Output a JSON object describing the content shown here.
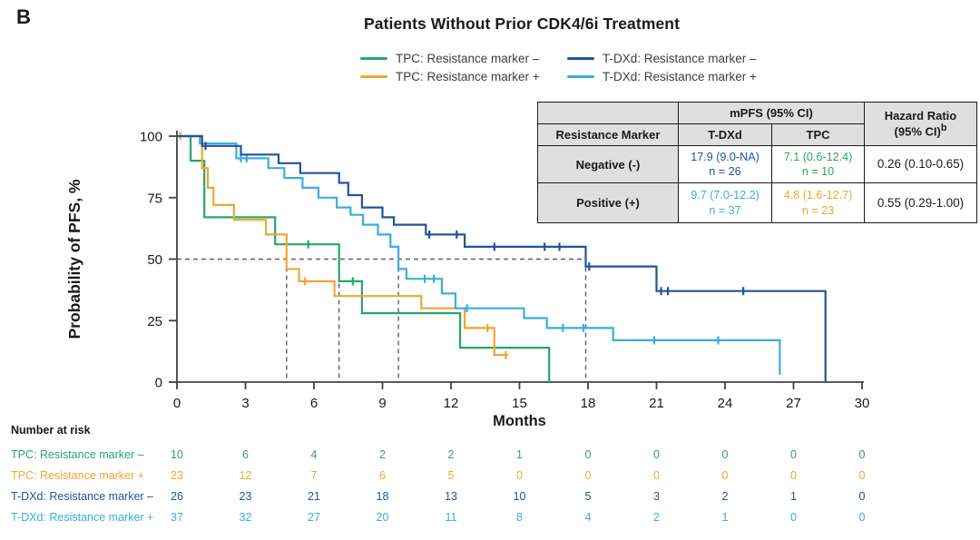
{
  "panel_label": "B",
  "title": "Patients Without Prior CDK4/6i Treatment",
  "colors": {
    "tpc_neg": "#2AA567",
    "tpc_pos": "#F0A534",
    "tdxd_neg": "#21549E",
    "tdxd_pos": "#3AADE1",
    "axis": "#404040",
    "dashed": "#606060",
    "table_header_bg": "#DFDFDF"
  },
  "legend": {
    "order": [
      0,
      2,
      1,
      3
    ]
  },
  "summary_table": {
    "header": {
      "marker": "Resistance Marker",
      "mpfs": "mPFS (95% CI)",
      "tdxd": "T-DXd",
      "tpc": "TPC",
      "hr_line1": "Hazard Ratio",
      "hr_line2": "(95% CI)",
      "hr_sup": "b"
    },
    "rows": [
      {
        "marker": "Negative (-)",
        "tdxd_value": "17.9 (9.0-NA)",
        "tdxd_n": "n = 26",
        "tdxd_color": "tdxd_neg",
        "tpc_value": "7.1 (0.6-12.4)",
        "tpc_n": "n = 10",
        "tpc_color": "tpc_neg",
        "hr": "0.26 (0.10-0.65)"
      },
      {
        "marker": "Positive (+)",
        "tdxd_value": "9.7 (7.0-12.2)",
        "tdxd_n": "n = 37",
        "tdxd_color": "tdxd_pos",
        "tpc_value": "4.8 (1.6-12.7)",
        "tpc_n": "n = 23",
        "tpc_color": "tpc_pos",
        "hr": "0.55 (0.29-1.00)"
      }
    ]
  },
  "chart_data": {
    "type": "line",
    "subtype": "kaplan-meier-step",
    "title": "Patients Without Prior CDK4/6i Treatment",
    "xlabel": "Months",
    "ylabel": "Probability of PFS, %",
    "xlim": [
      0,
      30
    ],
    "xticks": [
      0,
      3,
      6,
      9,
      12,
      15,
      18,
      21,
      24,
      27,
      30
    ],
    "ylim": [
      0,
      100
    ],
    "yticks": [
      0,
      25,
      50,
      75,
      100
    ],
    "grid": false,
    "legend_position": "top",
    "reference_lines": {
      "horizontal_y": 50,
      "horizontal_x_extent": [
        0,
        17.9
      ],
      "vertical_x": [
        4.8,
        7.1,
        9.7,
        17.9
      ]
    },
    "series": [
      {
        "name": "TPC: Resistance marker –",
        "color_key": "tpc_neg",
        "n": 10,
        "median_months": 7.1,
        "steps": [
          [
            0,
            100
          ],
          [
            0.6,
            90
          ],
          [
            1.2,
            67
          ],
          [
            4.3,
            56
          ],
          [
            7.1,
            41
          ],
          [
            8.1,
            28
          ],
          [
            12.4,
            14
          ],
          [
            16.3,
            0
          ]
        ],
        "censor_marks": [
          [
            5.75,
            56
          ],
          [
            7.7,
            41
          ]
        ]
      },
      {
        "name": "TPC: Resistance marker +",
        "color_key": "tpc_pos",
        "n": 23,
        "median_months": 4.8,
        "steps": [
          [
            0,
            100
          ],
          [
            1.1,
            87
          ],
          [
            1.35,
            79
          ],
          [
            1.6,
            72
          ],
          [
            2.5,
            66
          ],
          [
            3.9,
            60
          ],
          [
            4.8,
            46
          ],
          [
            5.35,
            41
          ],
          [
            6.9,
            35
          ],
          [
            10.7,
            30
          ],
          [
            12.6,
            22
          ],
          [
            13.9,
            11
          ]
        ],
        "end_month": 14.5,
        "censor_marks": [
          [
            0.15,
            100
          ],
          [
            5.6,
            41
          ],
          [
            13.6,
            22
          ],
          [
            14.4,
            11
          ]
        ]
      },
      {
        "name": "T-DXd: Resistance marker –",
        "color_key": "tdxd_neg",
        "n": 26,
        "median_months": 17.9,
        "steps": [
          [
            0,
            100
          ],
          [
            1.1,
            96
          ],
          [
            2.8,
            92.5
          ],
          [
            4.45,
            89
          ],
          [
            5.4,
            85
          ],
          [
            7.1,
            81
          ],
          [
            7.5,
            76
          ],
          [
            8.1,
            71
          ],
          [
            9.0,
            67
          ],
          [
            9.5,
            64
          ],
          [
            10.9,
            60
          ],
          [
            12.6,
            55
          ],
          [
            17.9,
            47
          ],
          [
            21.0,
            37
          ],
          [
            28.4,
            0
          ]
        ],
        "censor_marks": [
          [
            1.25,
            96
          ],
          [
            11.05,
            60
          ],
          [
            12.25,
            60
          ],
          [
            13.9,
            55
          ],
          [
            16.1,
            55
          ],
          [
            16.75,
            55
          ],
          [
            18.05,
            47
          ],
          [
            21.2,
            37
          ],
          [
            21.5,
            37
          ],
          [
            24.8,
            37
          ]
        ]
      },
      {
        "name": "T-DXd: Resistance marker +",
        "color_key": "tdxd_pos",
        "n": 37,
        "median_months": 9.7,
        "steps": [
          [
            0,
            100
          ],
          [
            1.0,
            97
          ],
          [
            2.6,
            91
          ],
          [
            4.0,
            87
          ],
          [
            4.7,
            83
          ],
          [
            5.5,
            79
          ],
          [
            6.2,
            75
          ],
          [
            7.0,
            71
          ],
          [
            7.6,
            68
          ],
          [
            8.15,
            64
          ],
          [
            8.8,
            60
          ],
          [
            9.35,
            55
          ],
          [
            9.7,
            46
          ],
          [
            10.05,
            42
          ],
          [
            11.6,
            36
          ],
          [
            12.2,
            30
          ],
          [
            15.2,
            26
          ],
          [
            16.2,
            22
          ],
          [
            19.1,
            17
          ],
          [
            26.4,
            3
          ]
        ],
        "censor_marks": [
          [
            2.8,
            91
          ],
          [
            3.05,
            91
          ],
          [
            10.85,
            42
          ],
          [
            11.25,
            42
          ],
          [
            12.7,
            30
          ],
          [
            16.9,
            22
          ],
          [
            17.8,
            22
          ],
          [
            20.9,
            17
          ],
          [
            23.7,
            17
          ]
        ]
      }
    ]
  },
  "risk_table": {
    "title": "Number at risk",
    "months": [
      0,
      3,
      6,
      9,
      12,
      15,
      18,
      21,
      24,
      27,
      30
    ],
    "rows": [
      {
        "label": "TPC: Resistance marker –",
        "color_key": "tpc_neg",
        "values": [
          10,
          6,
          4,
          2,
          2,
          1,
          0,
          0,
          0,
          0,
          0
        ]
      },
      {
        "label": "TPC: Resistance marker +",
        "color_key": "tpc_pos",
        "values": [
          23,
          12,
          7,
          6,
          5,
          0,
          0,
          0,
          0,
          0,
          0
        ]
      },
      {
        "label": "T-DXd: Resistance marker –",
        "color_key": "tdxd_neg",
        "values": [
          26,
          23,
          21,
          18,
          13,
          10,
          5,
          3,
          2,
          1,
          0
        ]
      },
      {
        "label": "T-DXd: Resistance marker +",
        "color_key": "tdxd_pos",
        "values": [
          37,
          32,
          27,
          20,
          11,
          8,
          4,
          2,
          1,
          0,
          0
        ]
      }
    ]
  }
}
